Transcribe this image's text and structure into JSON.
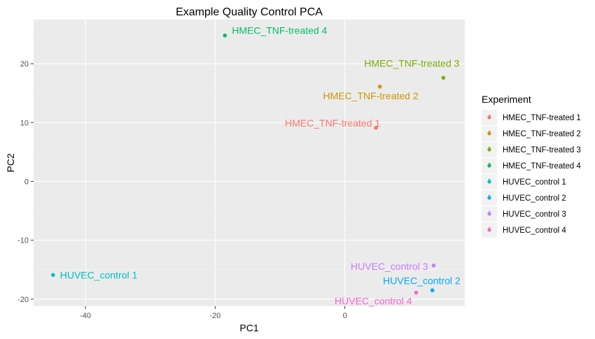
{
  "chart_data": {
    "type": "scatter",
    "title": "Example Quality Control PCA",
    "xlabel": "PC1",
    "ylabel": "PC2",
    "xlim": [
      -48,
      18.5
    ],
    "ylim": [
      -21.2,
      27.5
    ],
    "xticks": [
      -40,
      -20,
      0
    ],
    "yticks": [
      -20,
      -10,
      0,
      10,
      20
    ],
    "grid": true,
    "legend": {
      "title": "Experiment",
      "position": "right"
    },
    "series": [
      {
        "name": "HMEC_TNF-treated 1",
        "color": "#F8766D",
        "x": 4.8,
        "y": 9.1
      },
      {
        "name": "HMEC_TNF-treated 2",
        "color": "#CD9600",
        "x": 5.4,
        "y": 16.1
      },
      {
        "name": "HMEC_TNF-treated 3",
        "color": "#7CAE00",
        "x": 15.2,
        "y": 17.6
      },
      {
        "name": "HMEC_TNF-treated 4",
        "color": "#00BE67",
        "x": -18.5,
        "y": 24.8
      },
      {
        "name": "HUVEC_control 1",
        "color": "#00BFC4",
        "x": -45.0,
        "y": -15.9
      },
      {
        "name": "HUVEC_control 2",
        "color": "#00A9FF",
        "x": 13.5,
        "y": -18.5
      },
      {
        "name": "HUVEC_control 3",
        "color": "#C77CFF",
        "x": 13.7,
        "y": -14.3
      },
      {
        "name": "HUVEC_control 4",
        "color": "#FF61CC",
        "x": 11.0,
        "y": -18.9
      }
    ]
  }
}
